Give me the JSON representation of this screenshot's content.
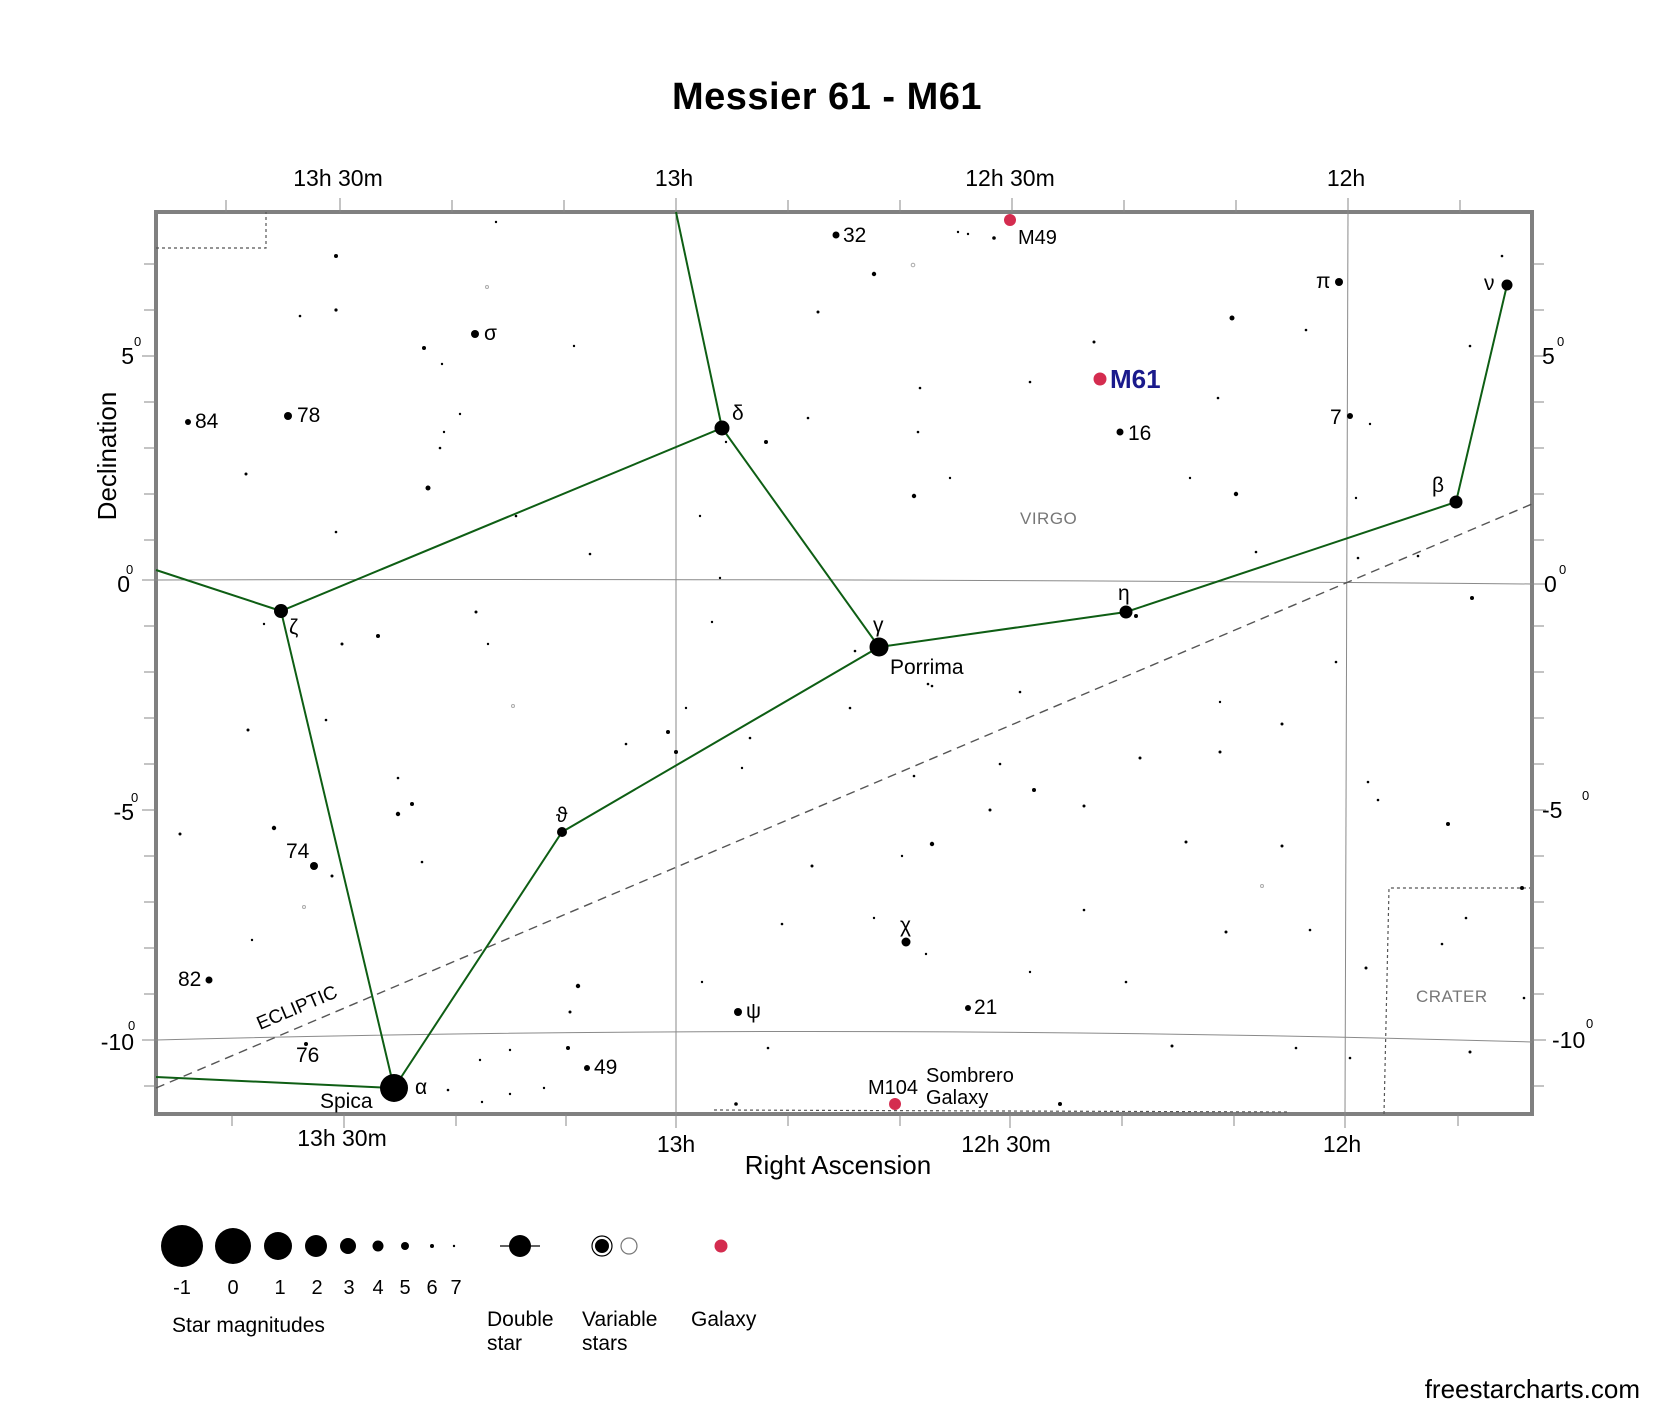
{
  "title": "Messier 61 - M61",
  "credit": "freestarcharts.com",
  "axes": {
    "x_label": "Right Ascension",
    "y_label": "Declination",
    "ra_ticks": [
      "13h 30m",
      "13h",
      "12h 30m",
      "12h"
    ],
    "dec_ticks": [
      {
        "value": "5",
        "sup": "0"
      },
      {
        "value": "0",
        "sup": "0"
      },
      {
        "value": "-5",
        "sup": "0"
      },
      {
        "value": "-10",
        "sup": "0"
      }
    ]
  },
  "constellations": [
    "VIRGO",
    "CRATER"
  ],
  "ecliptic_label": "ECLIPTIC",
  "target": {
    "name": "M61",
    "ra": "12h 22m",
    "dec": 4.5,
    "color": "#d42c4f",
    "label_color": "#1a1a8c"
  },
  "named_stars": [
    {
      "label": "α",
      "name": "Spica",
      "ra": "13h 25m",
      "dec": -11.1,
      "mag": -1
    },
    {
      "label": "γ",
      "name": "Porrima",
      "ra": "12h 42m",
      "dec": -1.4,
      "mag": 0
    },
    {
      "label": "δ",
      "ra": "12h 56m",
      "dec": 3.4,
      "mag": 1
    },
    {
      "label": "ζ",
      "ra": "13h 35m",
      "dec": -0.6,
      "mag": 2
    },
    {
      "label": "η",
      "ra": "12h 20m",
      "dec": -0.6,
      "mag": 2
    },
    {
      "label": "β",
      "ra": "11h 51m",
      "dec": 1.8,
      "mag": 2
    },
    {
      "label": "ν",
      "ra": "11h 46m",
      "dec": 6.5,
      "mag": 3
    },
    {
      "label": "ϑ",
      "ra": "13h 10m",
      "dec": -5.5,
      "mag": 3
    },
    {
      "label": "π",
      "ra": "12h 00m",
      "dec": 6.6,
      "mag": 4
    },
    {
      "label": "σ",
      "ra": "13h 18m",
      "dec": 5.4,
      "mag": 4
    },
    {
      "label": "χ",
      "ra": "12h 39m",
      "dec": -8.0,
      "mag": 4
    },
    {
      "label": "ψ",
      "ra": "12h 54m",
      "dec": -9.5,
      "mag": 4
    },
    {
      "label": "32",
      "ra": "12h 46m",
      "dec": 7.6,
      "mag": 5
    },
    {
      "label": "16",
      "ra": "12h 20m",
      "dec": 3.3,
      "mag": 5
    },
    {
      "label": "7",
      "ra": "11h 59m",
      "dec": 3.6,
      "mag": 5
    },
    {
      "label": "21",
      "ra": "12h 34m",
      "dec": -9.3,
      "mag": 5
    },
    {
      "label": "49",
      "ra": "13h 08m",
      "dec": -10.6,
      "mag": 5
    },
    {
      "label": "74",
      "ra": "13h 32m",
      "dec": -6.2,
      "mag": 5
    },
    {
      "label": "76",
      "ra": "13h 32m",
      "dec": -10.1,
      "mag": 5
    },
    {
      "label": "78",
      "ra": "13h 34m",
      "dec": 3.6,
      "mag": 5
    },
    {
      "label": "82",
      "ra": "13h 42m",
      "dec": -8.7,
      "mag": 5
    },
    {
      "label": "84",
      "ra": "13h 43m",
      "dec": 3.5,
      "mag": 5
    }
  ],
  "galaxies": [
    {
      "name": "M49",
      "ra": "12h 30m",
      "dec": 8.0
    },
    {
      "name": "M104",
      "common": [
        "Sombrero",
        "Galaxy"
      ],
      "ra": "12h 40m",
      "dec": -11.6
    }
  ],
  "legend": {
    "magnitudes": [
      "-1",
      "0",
      "1",
      "2",
      "3",
      "4",
      "5",
      "6",
      "7"
    ],
    "magnitudes_label": "Star magnitudes",
    "double_star": [
      "Double",
      "star"
    ],
    "variable_stars": [
      "Variable",
      "stars"
    ],
    "galaxy": "Galaxy"
  },
  "colors": {
    "lines": "#0e5e14",
    "galaxy": "#d42c4f",
    "frame": "#808080",
    "grid": "#808080"
  }
}
